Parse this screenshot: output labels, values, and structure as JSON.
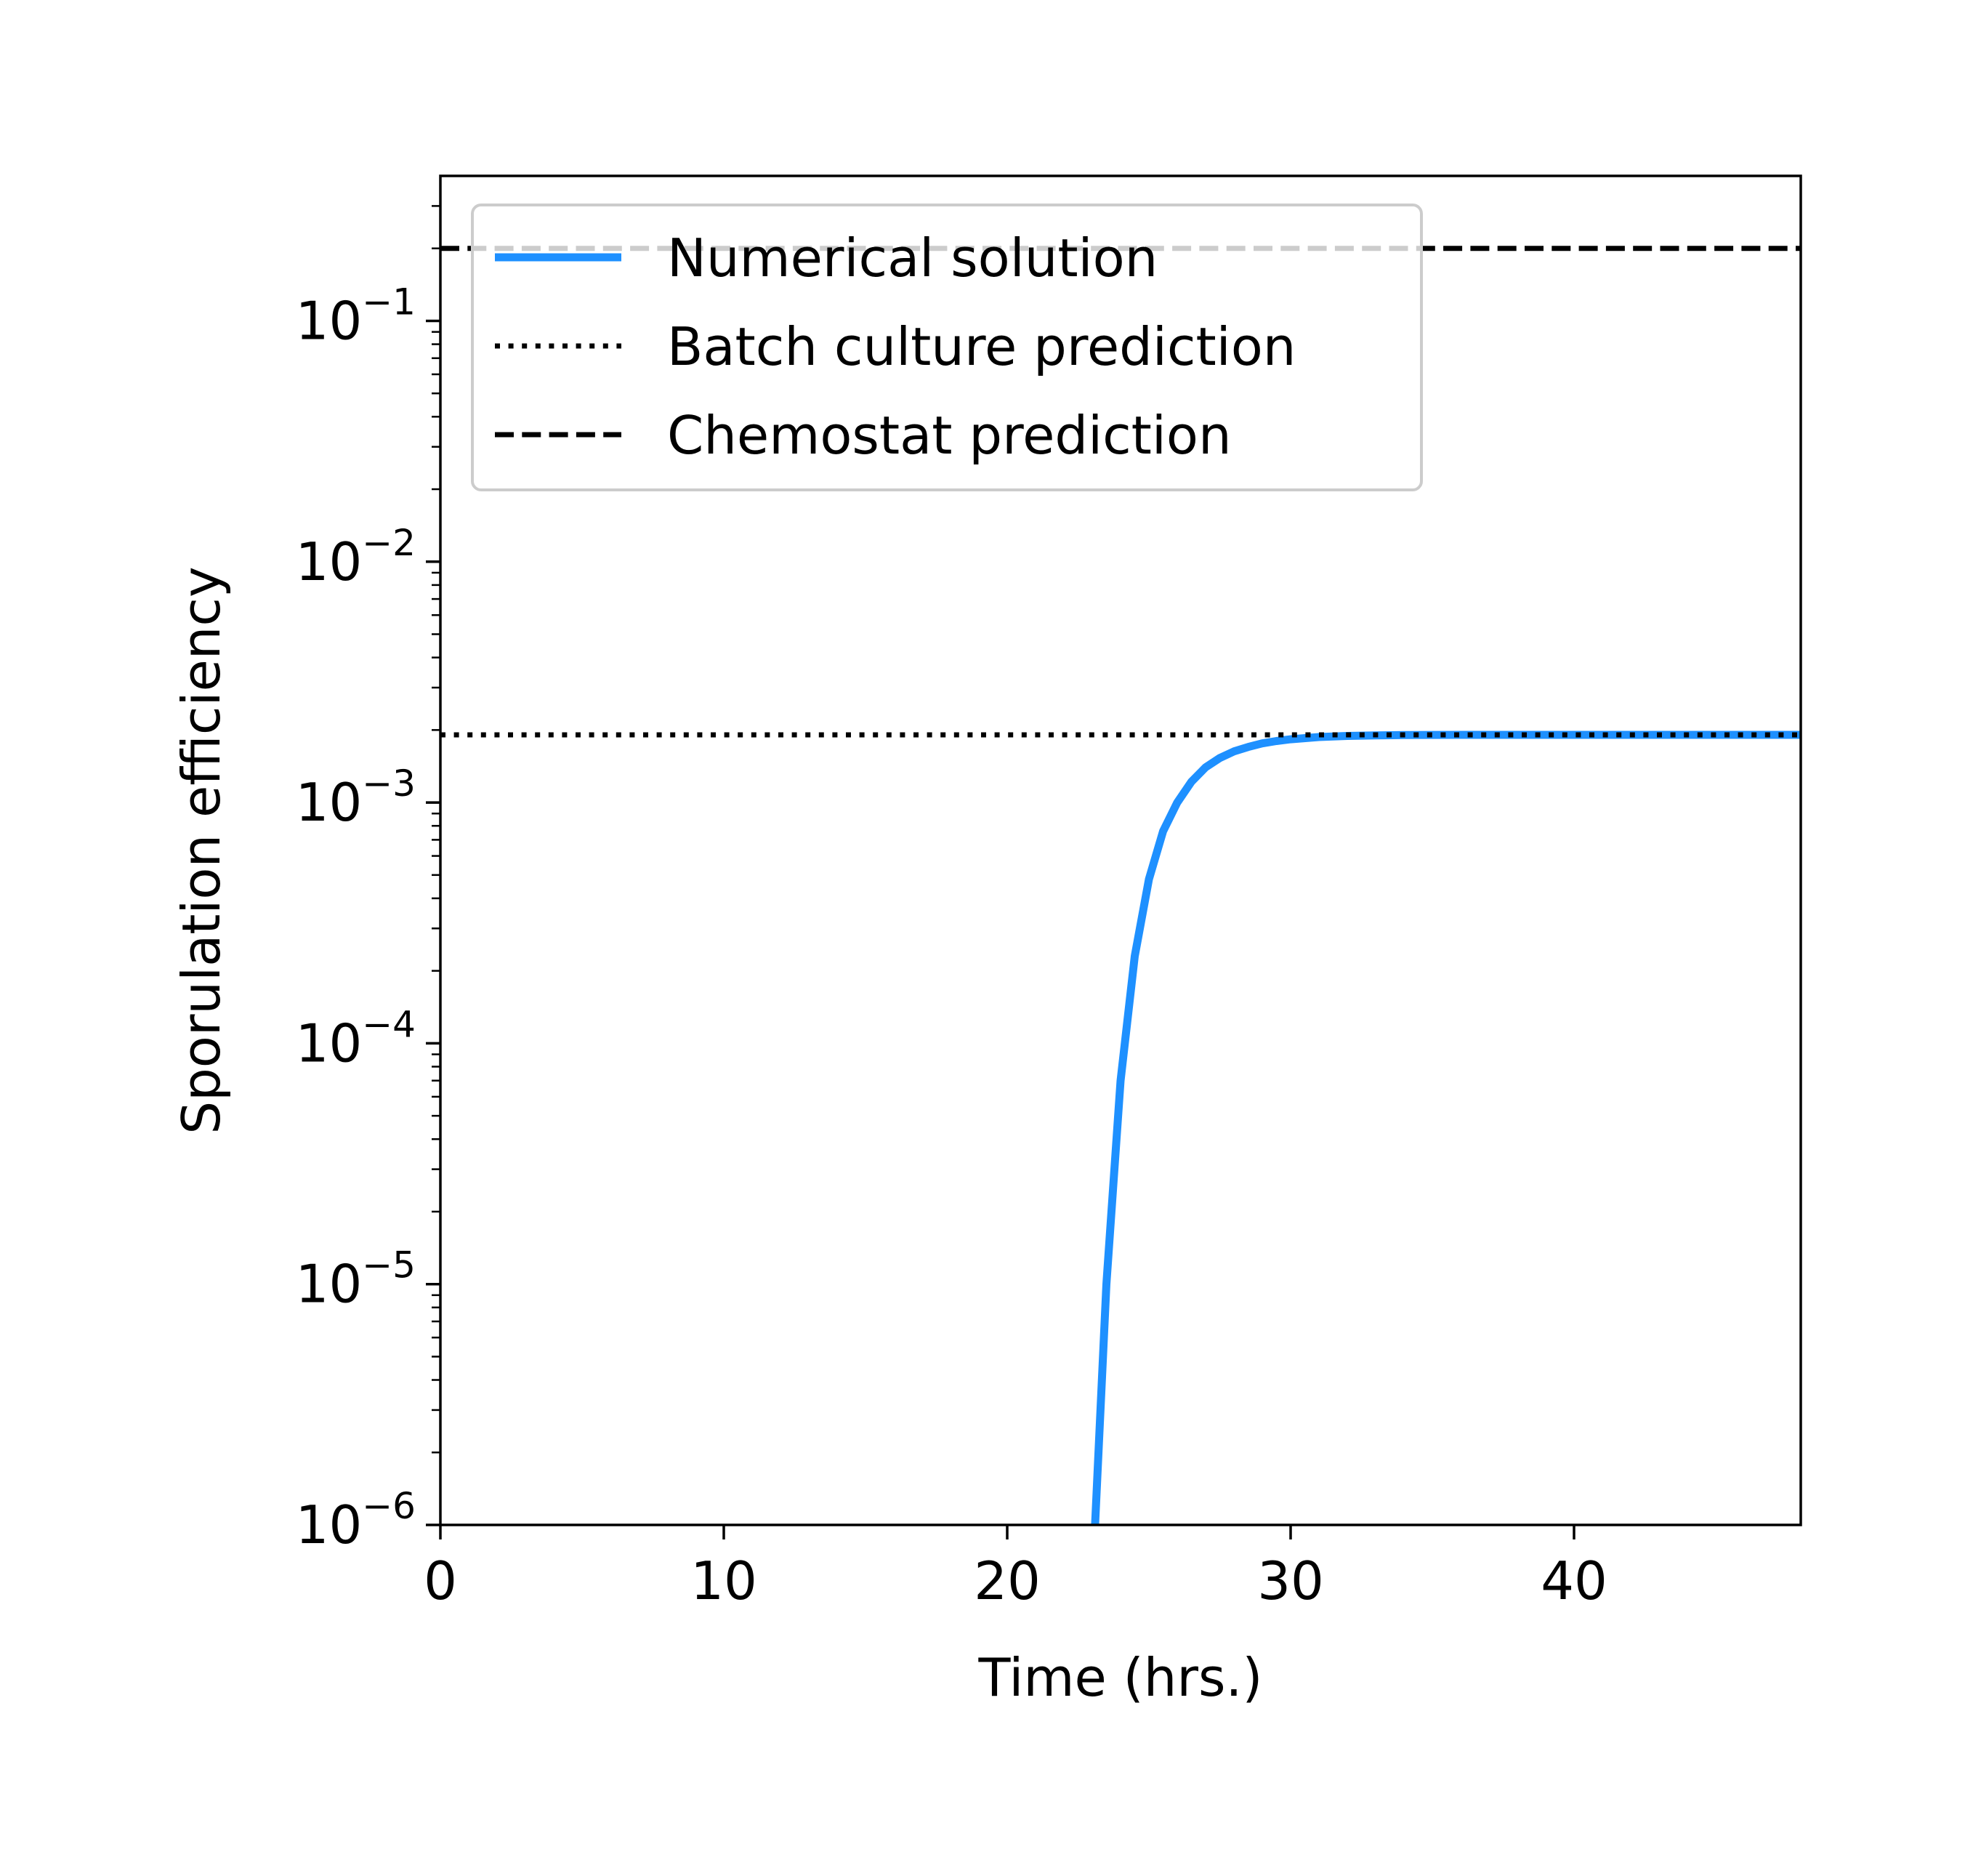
{
  "chart_data": {
    "type": "line",
    "xlabel": "Time (hrs.)",
    "ylabel": "Sporulation efficiency",
    "x_scale": "linear",
    "y_scale": "log",
    "xlim": [
      0,
      48
    ],
    "ylim": [
      1e-06,
      0.4
    ],
    "xticks": [
      0,
      10,
      20,
      30,
      40
    ],
    "xtick_labels": [
      "0",
      "10",
      "20",
      "30",
      "40"
    ],
    "yticks": [
      1e-06,
      1e-05,
      0.0001,
      0.001,
      0.01,
      0.1
    ],
    "ytick_labels": [
      {
        "base": "10",
        "exp": "−6"
      },
      {
        "base": "10",
        "exp": "−5"
      },
      {
        "base": "10",
        "exp": "−4"
      },
      {
        "base": "10",
        "exp": "−3"
      },
      {
        "base": "10",
        "exp": "−2"
      },
      {
        "base": "10",
        "exp": "−1"
      }
    ],
    "grid": false,
    "legend_position": "top-left",
    "series": [
      {
        "name": "Numerical solution",
        "style": "solid",
        "color": "#1e90ff",
        "x": [
          23.1,
          23.5,
          24.0,
          24.5,
          25.0,
          25.5,
          26.0,
          26.5,
          27.0,
          27.5,
          28.0,
          28.5,
          29.0,
          29.5,
          30.0,
          31.0,
          32.0,
          33.0,
          34.0,
          36.0,
          40.0,
          44.0,
          48.0
        ],
        "y": [
          1e-06,
          1e-05,
          7e-05,
          0.00023,
          0.00048,
          0.00076,
          0.001,
          0.00122,
          0.0014,
          0.00153,
          0.00163,
          0.0017,
          0.00176,
          0.0018,
          0.00183,
          0.00187,
          0.00189,
          0.0019,
          0.001905,
          0.00191,
          0.00191,
          0.00191,
          0.00191
        ]
      },
      {
        "name": "Batch culture prediction",
        "style": "dotted",
        "color": "#000000",
        "x": [
          0,
          48
        ],
        "y": [
          0.00191,
          0.00191
        ]
      },
      {
        "name": "Chemostat prediction",
        "style": "dashed",
        "color": "#000000",
        "x": [
          0,
          48
        ],
        "y": [
          0.2,
          0.2
        ]
      }
    ]
  }
}
